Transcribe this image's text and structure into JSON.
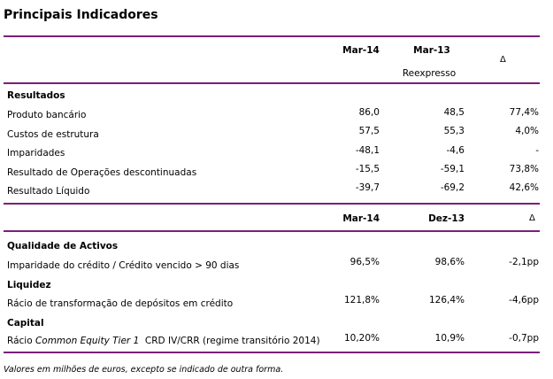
{
  "title": "Principais Indicadores",
  "table1": {
    "header": {
      "col1": "Mar-14",
      "col2": "Mar-13",
      "col2_sub": "Reexpresso",
      "col3": "Δ"
    },
    "section": "Resultados",
    "rows": [
      {
        "label": "Produto bancário",
        "v1": "86,0",
        "v2": "48,5",
        "v3": "77,4%"
      },
      {
        "label": "Custos de estrutura",
        "v1": "57,5",
        "v2": "55,3",
        "v3": "4,0%"
      },
      {
        "label": "Imparidades",
        "v1": "-48,1",
        "v2": "-4,6",
        "v3": "-"
      },
      {
        "label": "Resultado de Operações descontinuadas",
        "v1": "-15,5",
        "v2": "-59,1",
        "v3": "73,8%"
      },
      {
        "label": "Resultado Líquido",
        "v1": "-39,7",
        "v2": "-69,2",
        "v3": "42,6%"
      }
    ]
  },
  "table2": {
    "header": {
      "col1": "Mar-14",
      "col2": "Dez-13",
      "col3": "Δ"
    },
    "sections": [
      {
        "title": "Qualidade de Activos",
        "rows": [
          {
            "label": "Imparidade do crédito / Crédito vencido > 90 dias",
            "v1": "96,5%",
            "v2": "98,6%",
            "v3": "-2,1pp"
          }
        ]
      },
      {
        "title": "Liquidez",
        "rows": [
          {
            "label": "Rácio de transformação de depósitos em crédito",
            "v1": "121,8%",
            "v2": "126,4%",
            "v3": "-4,6pp"
          }
        ]
      },
      {
        "title": "Capital",
        "rows": [
          {
            "label_prefix": "Rácio ",
            "label_italic": "Common Equity Tier 1",
            "label_suffix": "  CRD IV/CRR (regime transitório 2014)",
            "v1": "10,20%",
            "v2": "10,9%",
            "v3": "-0,7pp"
          }
        ]
      }
    ]
  },
  "footnote": "Valores em milhões de euros, excepto se indicado de outra forma.",
  "colors": {
    "rule": "#7a1f78"
  }
}
